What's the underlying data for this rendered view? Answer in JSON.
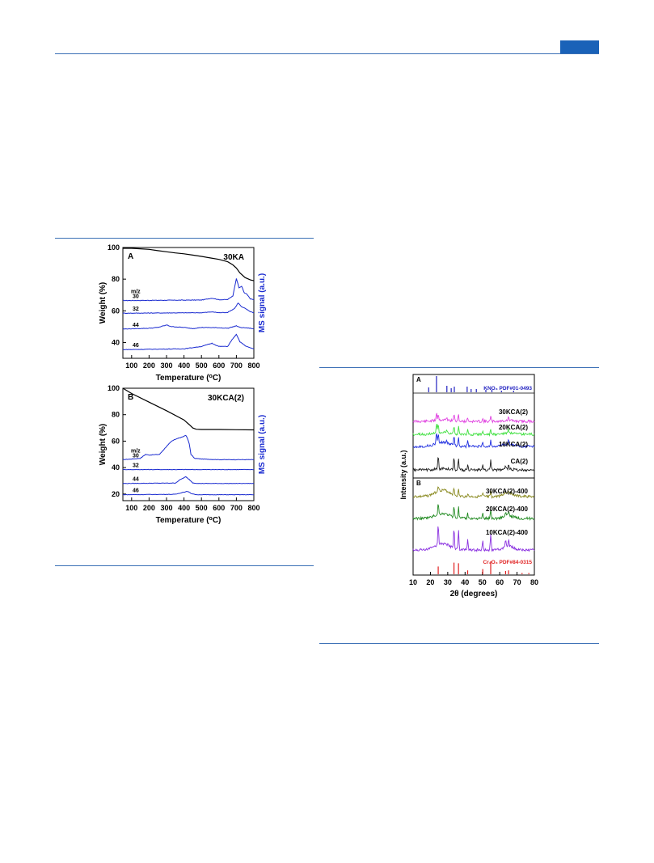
{
  "header": {
    "accent_color": "#1a62b8"
  },
  "figure_tga": {
    "panel_a": {
      "label": "A",
      "sample": "30KA",
      "chart_data": {
        "type": "line",
        "xlabel": "Temperature (°C)",
        "ylabel": "Weight (%)",
        "y2label": "MS signal (a.u.)",
        "xlim": [
          50,
          800
        ],
        "ylim": [
          30,
          100
        ],
        "xticks": [
          100,
          200,
          300,
          400,
          500,
          600,
          700,
          800
        ],
        "yticks": [
          40,
          60,
          80,
          100
        ],
        "mz_label": "m/z",
        "weight": {
          "x": [
            50,
            100,
            150,
            200,
            250,
            300,
            350,
            400,
            450,
            500,
            550,
            600,
            650,
            680,
            700,
            720,
            750,
            780,
            800
          ],
          "y": [
            99.5,
            99.5,
            99.2,
            98.8,
            98,
            97.3,
            96.6,
            96,
            95.2,
            94.4,
            93.4,
            92.5,
            91,
            89,
            87,
            84,
            81,
            79.5,
            79
          ]
        },
        "ms_series": [
          {
            "name": "30",
            "base": 66.5,
            "x": [
              50,
              500,
              560,
              600,
              650,
              680,
              700,
              715,
              730,
              745,
              760,
              780,
              800
            ],
            "dy": [
              0,
              0.3,
              1.5,
              0.5,
              0.6,
              3,
              14,
              8,
              9,
              5,
              4,
              1,
              0.5
            ]
          },
          {
            "name": "32",
            "base": 58.5,
            "x": [
              50,
              500,
              560,
              600,
              650,
              690,
              710,
              730,
              750,
              780,
              800
            ],
            "dy": [
              0,
              0.3,
              0.8,
              0.3,
              0.5,
              3,
              6.5,
              4,
              3,
              1,
              0.3
            ]
          },
          {
            "name": "44",
            "base": 48.5,
            "x": [
              50,
              200,
              250,
              300,
              330,
              400,
              450,
              500,
              600,
              650,
              700,
              720,
              780,
              800
            ],
            "dy": [
              0,
              0.5,
              1,
              2.5,
              1.5,
              1,
              0.3,
              1,
              0.8,
              0.5,
              2,
              1,
              0.5,
              0
            ]
          },
          {
            "name": "46",
            "base": 35.5,
            "x": [
              50,
              400,
              500,
              560,
              600,
              650,
              680,
              700,
              720,
              750,
              780,
              800
            ],
            "dy": [
              0,
              0.5,
              2,
              4,
              2,
              2,
              7,
              9.5,
              5,
              2.5,
              1,
              0.5
            ]
          }
        ]
      }
    },
    "panel_b": {
      "label": "B",
      "sample": "30KCA(2)",
      "chart_data": {
        "type": "line",
        "xlabel": "Temperature (°C)",
        "ylabel": "Weight (%)",
        "y2label": "MS signal (a.u.)",
        "xlim": [
          50,
          800
        ],
        "ylim": [
          15,
          100
        ],
        "xticks": [
          100,
          200,
          300,
          400,
          500,
          600,
          700,
          800
        ],
        "yticks": [
          20,
          40,
          60,
          80,
          100
        ],
        "mz_label": "m/z",
        "weight": {
          "x": [
            50,
            100,
            200,
            300,
            400,
            430,
            450,
            470,
            500,
            600,
            700,
            800
          ],
          "y": [
            100,
            96,
            89.5,
            83,
            76,
            72.5,
            70,
            69,
            68.8,
            68.8,
            68.6,
            68.5
          ]
        },
        "ms_series": [
          {
            "name": "30",
            "base": 46,
            "x": [
              50,
              150,
              180,
              200,
              260,
              300,
              330,
              360,
              390,
              410,
              420,
              430,
              440,
              460,
              500,
              600,
              800
            ],
            "dy": [
              0,
              1,
              4,
              3.5,
              4,
              10,
              14,
              16,
              17,
              18.5,
              16,
              12,
              4,
              1,
              0.5,
              0,
              0
            ]
          },
          {
            "name": "32",
            "base": 38.5,
            "x": [
              50,
              800
            ],
            "dy": [
              0,
              0
            ]
          },
          {
            "name": "44",
            "base": 28,
            "x": [
              50,
              350,
              380,
              410,
              430,
              450,
              480,
              800
            ],
            "dy": [
              0,
              0.3,
              3,
              5,
              3,
              0.5,
              0,
              0
            ]
          },
          {
            "name": "46",
            "base": 19.5,
            "x": [
              50,
              350,
              400,
              420,
              440,
              470,
              800
            ],
            "dy": [
              0,
              0.3,
              2,
              2.5,
              1,
              0,
              0
            ]
          }
        ]
      }
    }
  },
  "figure_xrd": {
    "chart_data": {
      "type": "line",
      "xlabel": "2θ (degrees)",
      "ylabel": "Intensity (a.u.)",
      "xlim": [
        10,
        80
      ],
      "xticks": [
        10,
        20,
        30,
        40,
        50,
        60,
        70,
        80
      ],
      "panel_a": {
        "label": "A",
        "reference": {
          "name": "KNO₃ PDF#01-0493",
          "color": "#2020c0",
          "positions": [
            19.0,
            23.5,
            29.5,
            32.0,
            33.8,
            41.2,
            43.5,
            46.5,
            52.0,
            55.5,
            61.0,
            68.0
          ],
          "heights": [
            0.3,
            1.0,
            0.4,
            0.25,
            0.35,
            0.35,
            0.2,
            0.2,
            0.15,
            0.15,
            0.1,
            0.1
          ]
        },
        "series": [
          {
            "name": "30KCA(2)",
            "color": "#e040e0"
          },
          {
            "name": "20KCA(2)",
            "color": "#40e040"
          },
          {
            "name": "10KCA(2)",
            "color": "#2030e0"
          },
          {
            "name": "CA(2)",
            "color": "#202020"
          }
        ]
      },
      "panel_b": {
        "label": "B",
        "series": [
          {
            "name": "30KCA(2)-400",
            "color": "#8a8a20"
          },
          {
            "name": "20KCA(2)-400",
            "color": "#208a20"
          },
          {
            "name": "10KCA(2)-400",
            "color": "#8a30e0"
          }
        ],
        "reference": {
          "name": "Cr₂O₃ PDF#84-0315",
          "color": "#e02020",
          "positions": [
            24.5,
            33.6,
            36.2,
            41.5,
            50.2,
            54.8,
            63.4,
            65.1,
            72.9,
            76.8
          ],
          "heights": [
            0.6,
            0.9,
            0.85,
            0.3,
            0.4,
            1.0,
            0.25,
            0.3,
            0.1,
            0.1
          ]
        }
      }
    }
  }
}
